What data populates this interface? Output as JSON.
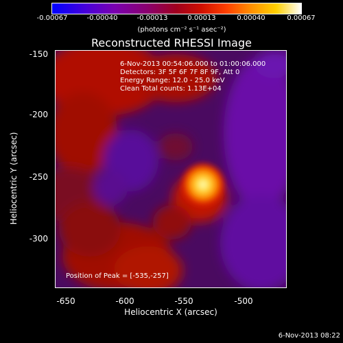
{
  "colorbar": {
    "ticks": [
      "-0.00067",
      "-0.00040",
      "-0.00013",
      "0.00013",
      "0.00040",
      "0.00067"
    ],
    "unit_label": "(photons cm⁻² s⁻¹ asec⁻²)"
  },
  "title": "Reconstructed RHESSI Image",
  "info": {
    "time_range": "6-Nov-2013 00:54:06.000 to 01:00:06.000",
    "detectors": "Detectors: 3F 5F 6F 7F 8F 9F, Att 0",
    "energy": "Energy Range: 12.0 - 25.0 keV",
    "clean": "Clean     Total counts: 1.13E+04"
  },
  "peak": "Position of Peak = [-535,-257]",
  "x_axis": {
    "label": "Heliocentric X (arcsec)",
    "ticks": [
      "-650",
      "-600",
      "-550",
      "-500"
    ]
  },
  "y_axis": {
    "label": "Heliocentric Y (arcsec)",
    "ticks": [
      "-150",
      "-200",
      "-250",
      "-300"
    ]
  },
  "timestamp": "6-Nov-2013 08:22",
  "colors": {
    "peak_core": "#ffffff",
    "peak_outer": "#ffc000",
    "positive": "#c01000",
    "negative": "#6a0098"
  }
}
